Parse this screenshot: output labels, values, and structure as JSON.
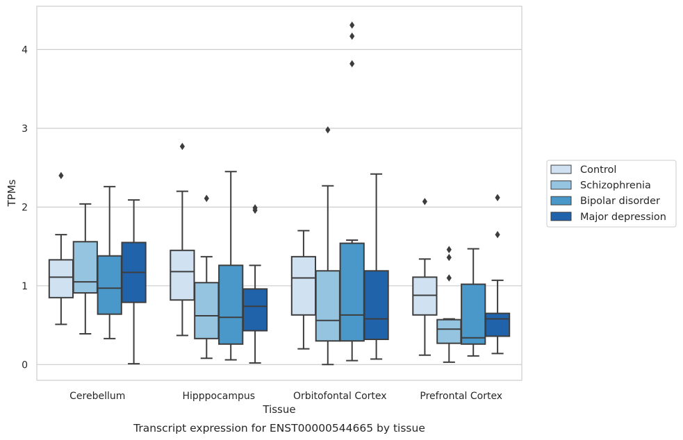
{
  "caption": "Transcript expression for ENST00000544665 by tissue",
  "chart_data": {
    "type": "box",
    "xlabel": "Tissue",
    "ylabel": "TPMs",
    "ylim": [
      -0.2,
      4.55
    ],
    "yticks": [
      0,
      1,
      2,
      3,
      4
    ],
    "grid": "horizontal",
    "legend_position": "right",
    "categories": [
      "Cerebellum",
      "Hipppocampus",
      "Orbitofontal Cortex",
      "Prefrontal Cortex"
    ],
    "series": [
      {
        "name": "Control",
        "color": "#d0e1f2",
        "boxes": [
          {
            "whislo": 0.51,
            "q1": 0.85,
            "med": 1.11,
            "q3": 1.33,
            "whishi": 1.65,
            "fliers": [
              2.4
            ]
          },
          {
            "whislo": 0.37,
            "q1": 0.82,
            "med": 1.18,
            "q3": 1.45,
            "whishi": 2.2,
            "fliers": [
              2.77
            ]
          },
          {
            "whislo": 0.2,
            "q1": 0.63,
            "med": 1.1,
            "q3": 1.37,
            "whishi": 1.7,
            "fliers": []
          },
          {
            "whislo": 0.12,
            "q1": 0.63,
            "med": 0.88,
            "q3": 1.11,
            "whishi": 1.34,
            "fliers": [
              2.07
            ]
          }
        ]
      },
      {
        "name": "Schizophrenia",
        "color": "#94c4df",
        "boxes": [
          {
            "whislo": 0.39,
            "q1": 0.91,
            "med": 1.05,
            "q3": 1.56,
            "whishi": 2.04,
            "fliers": []
          },
          {
            "whislo": 0.08,
            "q1": 0.33,
            "med": 0.62,
            "q3": 1.04,
            "whishi": 1.37,
            "fliers": [
              2.11
            ]
          },
          {
            "whislo": 0.0,
            "q1": 0.3,
            "med": 0.56,
            "q3": 1.19,
            "whishi": 2.27,
            "fliers": [
              2.98
            ]
          },
          {
            "whislo": 0.03,
            "q1": 0.27,
            "med": 0.45,
            "q3": 0.57,
            "whishi": 0.58,
            "fliers": [
              1.1,
              1.36,
              1.46
            ]
          }
        ]
      },
      {
        "name": "Bipolar disorder",
        "color": "#4a98c9",
        "boxes": [
          {
            "whislo": 0.33,
            "q1": 0.64,
            "med": 0.97,
            "q3": 1.38,
            "whishi": 2.26,
            "fliers": []
          },
          {
            "whislo": 0.06,
            "q1": 0.26,
            "med": 0.6,
            "q3": 1.26,
            "whishi": 2.45,
            "fliers": []
          },
          {
            "whislo": 0.05,
            "q1": 0.3,
            "med": 0.63,
            "q3": 1.54,
            "whishi": 1.58,
            "fliers": [
              3.82,
              4.17,
              4.31
            ]
          },
          {
            "whislo": 0.11,
            "q1": 0.26,
            "med": 0.34,
            "q3": 1.02,
            "whishi": 1.47,
            "fliers": []
          }
        ]
      },
      {
        "name": "Major depression",
        "color": "#2163aa",
        "boxes": [
          {
            "whislo": 0.01,
            "q1": 0.79,
            "med": 1.17,
            "q3": 1.55,
            "whishi": 2.09,
            "fliers": []
          },
          {
            "whislo": 0.02,
            "q1": 0.43,
            "med": 0.74,
            "q3": 0.96,
            "whishi": 1.26,
            "fliers": [
              1.96,
              1.99
            ]
          },
          {
            "whislo": 0.07,
            "q1": 0.32,
            "med": 0.58,
            "q3": 1.19,
            "whishi": 2.42,
            "fliers": []
          },
          {
            "whislo": 0.14,
            "q1": 0.36,
            "med": 0.58,
            "q3": 0.65,
            "whishi": 1.07,
            "fliers": [
              1.65,
              2.12
            ]
          }
        ]
      }
    ]
  }
}
